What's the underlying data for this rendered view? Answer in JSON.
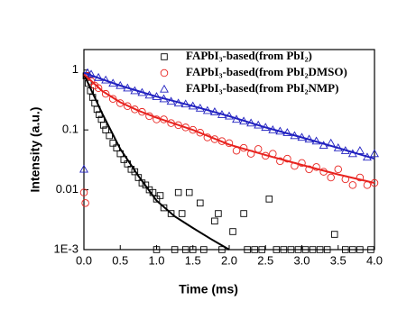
{
  "chart_data": {
    "type": "scatter",
    "xlabel": "Time (ms)",
    "ylabel": "Intensity (a.u.)",
    "xlim": [
      0,
      4
    ],
    "ylim": [
      0.001,
      2.2
    ],
    "yscale": "log",
    "legend": "upper right",
    "xticks": [
      {
        "value": 0,
        "label": "0.0"
      },
      0.5,
      {
        "value": 1,
        "label": "1.0"
      },
      1.5,
      {
        "value": 2,
        "label": "2.0"
      },
      2.5,
      {
        "value": 3,
        "label": "3.0"
      },
      3.5,
      {
        "value": 4,
        "label": "4.0"
      }
    ],
    "yticks": [
      {
        "value": 0.001,
        "label": "1E-3"
      },
      0.01,
      0.1,
      1
    ],
    "series": [
      {
        "name": "FAPbI₃-based(from PbI₂)",
        "color": "#000000",
        "marker": "square",
        "x": [
          0.03,
          0.06,
          0.09,
          0.12,
          0.15,
          0.18,
          0.21,
          0.24,
          0.27,
          0.3,
          0.35,
          0.4,
          0.45,
          0.5,
          0.55,
          0.6,
          0.65,
          0.7,
          0.75,
          0.8,
          0.85,
          0.9,
          0.95,
          1.0,
          1.05,
          1.1,
          1.2,
          1.3,
          1.35,
          1.45,
          1.6,
          1.8,
          1.85,
          2.05,
          2.2,
          2.55,
          3.45,
          1.0,
          1.25,
          1.4,
          1.5,
          1.65,
          1.9,
          2.25,
          2.35,
          2.45,
          2.65,
          2.75,
          2.85,
          2.95,
          3.05,
          3.15,
          3.25,
          3.35,
          3.6,
          3.7,
          3.8,
          3.95
        ],
        "values": [
          0.8,
          0.6,
          0.45,
          0.35,
          0.28,
          0.22,
          0.18,
          0.15,
          0.12,
          0.1,
          0.08,
          0.06,
          0.05,
          0.04,
          0.032,
          0.027,
          0.022,
          0.02,
          0.016,
          0.013,
          0.012,
          0.01,
          0.009,
          0.007,
          0.008,
          0.005,
          0.004,
          0.009,
          0.004,
          0.009,
          0.006,
          0.003,
          0.004,
          0.002,
          0.004,
          0.007,
          0.0018,
          0.001,
          0.001,
          0.001,
          0.001,
          0.001,
          0.001,
          0.001,
          0.001,
          0.001,
          0.001,
          0.001,
          0.001,
          0.001,
          0.001,
          0.001,
          0.001,
          0.001,
          0.001,
          0.001,
          0.001,
          0.001
        ]
      },
      {
        "name": "FAPbI₃-based(from PbI₂DMSO)",
        "color": "#e8231f",
        "marker": "circle",
        "x": [
          0.0,
          0.02,
          0.05,
          0.1,
          0.15,
          0.2,
          0.3,
          0.4,
          0.5,
          0.6,
          0.7,
          0.8,
          0.9,
          1.0,
          1.1,
          1.2,
          1.3,
          1.4,
          1.5,
          1.6,
          1.7,
          1.8,
          1.9,
          2.0,
          2.1,
          2.2,
          2.3,
          2.4,
          2.5,
          2.6,
          2.7,
          2.8,
          2.9,
          3.0,
          3.1,
          3.2,
          3.3,
          3.4,
          3.5,
          3.6,
          3.7,
          3.8,
          3.9,
          4.0
        ],
        "values": [
          0.009,
          0.006,
          0.8,
          0.65,
          0.55,
          0.5,
          0.4,
          0.33,
          0.28,
          0.25,
          0.22,
          0.2,
          0.17,
          0.15,
          0.15,
          0.13,
          0.12,
          0.11,
          0.1,
          0.09,
          0.075,
          0.07,
          0.065,
          0.06,
          0.045,
          0.05,
          0.04,
          0.048,
          0.037,
          0.04,
          0.03,
          0.033,
          0.025,
          0.028,
          0.022,
          0.024,
          0.02,
          0.016,
          0.022,
          0.015,
          0.012,
          0.016,
          0.012,
          0.013
        ]
      },
      {
        "name": "FAPbI₃-based(from PbI₂NMP)",
        "color": "#2020c0",
        "marker": "triangle",
        "x": [
          0.0,
          0.05,
          0.1,
          0.2,
          0.3,
          0.4,
          0.5,
          0.6,
          0.7,
          0.8,
          0.9,
          1.0,
          1.1,
          1.2,
          1.3,
          1.4,
          1.5,
          1.6,
          1.7,
          1.8,
          1.9,
          2.0,
          2.1,
          2.2,
          2.3,
          2.4,
          2.5,
          2.6,
          2.7,
          2.8,
          2.9,
          3.0,
          3.1,
          3.2,
          3.3,
          3.4,
          3.5,
          3.6,
          3.7,
          3.8,
          3.9,
          4.0
        ],
        "values": [
          0.022,
          0.9,
          0.85,
          0.75,
          0.68,
          0.6,
          0.55,
          0.5,
          0.45,
          0.42,
          0.38,
          0.36,
          0.33,
          0.3,
          0.28,
          0.27,
          0.25,
          0.23,
          0.21,
          0.2,
          0.18,
          0.17,
          0.15,
          0.14,
          0.13,
          0.12,
          0.11,
          0.1,
          0.095,
          0.09,
          0.08,
          0.075,
          0.07,
          0.065,
          0.055,
          0.06,
          0.05,
          0.045,
          0.04,
          0.045,
          0.035,
          0.04
        ]
      }
    ],
    "fits": [
      {
        "color": "#000000",
        "x": [
          0,
          0.25,
          0.5,
          0.75,
          1.0,
          1.25,
          1.5,
          1.75,
          2.0
        ],
        "values": [
          0.85,
          0.19,
          0.048,
          0.017,
          0.0066,
          0.0036,
          0.0023,
          0.0015,
          0.001
        ]
      },
      {
        "color": "#e8231f",
        "x": [
          0,
          0.25,
          0.5,
          0.75,
          1.0,
          1.5,
          2.0,
          2.5,
          3.0,
          3.5,
          4.0
        ],
        "values": [
          0.85,
          0.45,
          0.29,
          0.21,
          0.16,
          0.1,
          0.057,
          0.038,
          0.026,
          0.018,
          0.013
        ]
      },
      {
        "color": "#2020c0",
        "x": [
          0,
          0.5,
          1.0,
          1.5,
          2.0,
          2.5,
          3.0,
          3.5,
          4.0
        ],
        "values": [
          0.9,
          0.55,
          0.36,
          0.25,
          0.17,
          0.11,
          0.075,
          0.05,
          0.033
        ]
      }
    ]
  }
}
